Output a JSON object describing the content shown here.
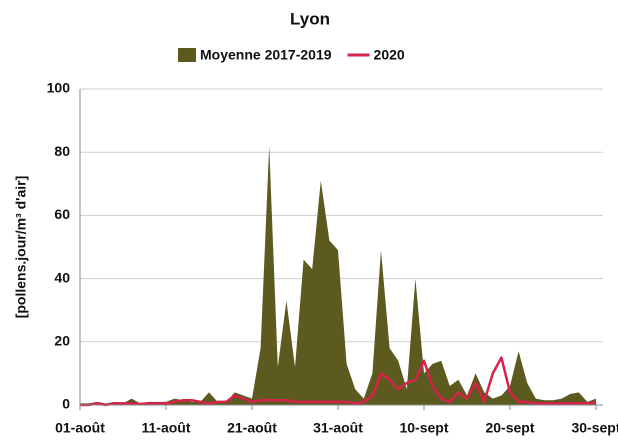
{
  "chart_data": {
    "type": "area_line",
    "title": "Lyon",
    "ylabel": "[pollens.jour/m³ d'air]",
    "categories": [
      "01-août",
      null,
      null,
      null,
      null,
      null,
      null,
      null,
      null,
      null,
      "11-août",
      null,
      null,
      null,
      null,
      null,
      null,
      null,
      null,
      null,
      "21-août",
      null,
      null,
      null,
      null,
      null,
      null,
      null,
      null,
      null,
      "31-août",
      null,
      null,
      null,
      null,
      null,
      null,
      null,
      null,
      null,
      "10-sept",
      null,
      null,
      null,
      null,
      null,
      null,
      null,
      null,
      null,
      "20-sept",
      null,
      null,
      null,
      null,
      null,
      null,
      null,
      null,
      null,
      "30-sept"
    ],
    "series": [
      {
        "name": "Moyenne 2017-2019",
        "color": "#5c5a1e",
        "kind": "area",
        "values": [
          0.5,
          0.5,
          1,
          0.5,
          1,
          0.5,
          2,
          0.5,
          1,
          1,
          1,
          2,
          1.5,
          1,
          1,
          4,
          1,
          1,
          4,
          3,
          2,
          18,
          82,
          12,
          33,
          12,
          46,
          43,
          71,
          52,
          49,
          13,
          5,
          2,
          10,
          49,
          18,
          14,
          5,
          40,
          10,
          13,
          14,
          6,
          8,
          3,
          10,
          4,
          2,
          3,
          6,
          17,
          7,
          2,
          1.5,
          1.5,
          2,
          3.5,
          4,
          1,
          2
        ]
      },
      {
        "name": "2020",
        "color": "#d6224a",
        "kind": "line",
        "values": [
          0,
          0,
          0.5,
          0,
          0.5,
          0.5,
          0.5,
          0.3,
          0.5,
          0.5,
          0.5,
          1,
          1.5,
          1.5,
          1,
          0.5,
          1,
          1,
          3,
          2,
          1,
          1.5,
          1.5,
          1.5,
          1.5,
          1,
          1,
          1,
          1,
          1,
          1,
          1,
          0.5,
          1,
          3,
          10,
          8,
          5,
          7,
          8,
          14,
          6,
          2,
          1,
          4,
          2,
          7,
          1,
          10,
          15,
          4,
          1,
          1,
          0.5,
          0.5,
          0.5,
          0.5,
          0.5,
          0.5,
          0.5,
          1
        ]
      }
    ],
    "ylim": [
      0,
      100
    ],
    "yticks": [
      0,
      20,
      40,
      60,
      80,
      100
    ],
    "grid": true,
    "legend": "top"
  }
}
